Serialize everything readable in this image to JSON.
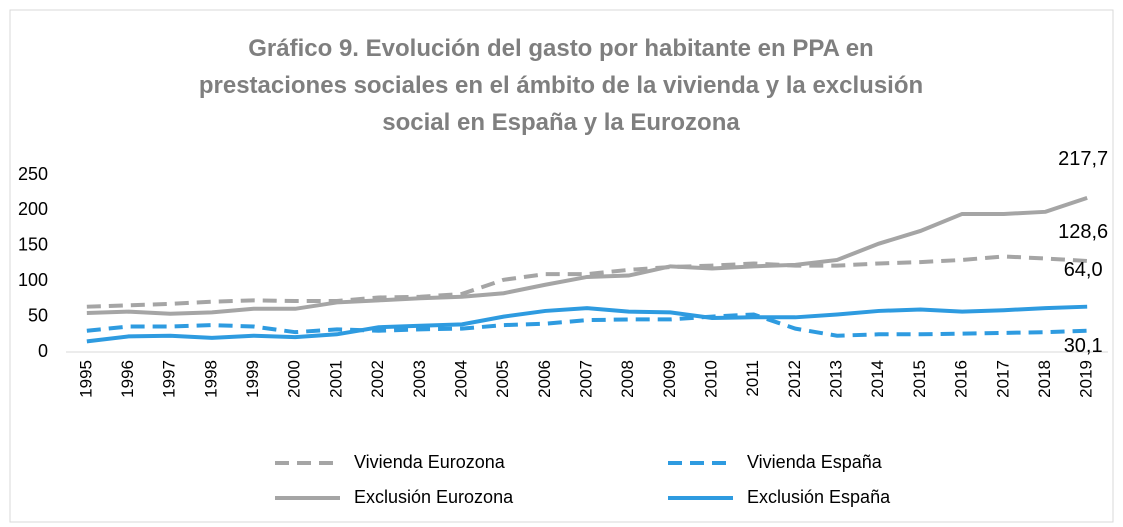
{
  "chart_data": {
    "type": "line",
    "title": "Gráfico 9. Evolución del gasto por habitante en PPA en prestaciones sociales en el ámbito de la vivienda y la exclusión social en España y la Eurozona",
    "categories": [
      "1995",
      "1996",
      "1997",
      "1998",
      "1999",
      "2000",
      "2001",
      "2002",
      "2003",
      "2004",
      "2005",
      "2006",
      "2007",
      "2008",
      "2009",
      "2010",
      "2011",
      "2012",
      "2013",
      "2014",
      "2015",
      "2016",
      "2017",
      "2018",
      "2019"
    ],
    "series": [
      {
        "name": "Vivienda Eurozona",
        "color": "#a5a5a5",
        "dash": true,
        "values": [
          64,
          66,
          68,
          71,
          73,
          72,
          72,
          77,
          78,
          82,
          102,
          110,
          110,
          116,
          120,
          122,
          125,
          122,
          122,
          125,
          127,
          130,
          135,
          132,
          128.6
        ],
        "value_labels": [
          null,
          null,
          null,
          null,
          null,
          null,
          null,
          null,
          null,
          null,
          null,
          null,
          null,
          null,
          null,
          null,
          null,
          null,
          null,
          null,
          null,
          null,
          null,
          null,
          "128,6"
        ]
      },
      {
        "name": "Vivienda España",
        "color": "#2e9be0",
        "dash": true,
        "values": [
          30,
          36,
          36,
          38,
          36,
          28,
          32,
          30,
          32,
          33,
          38,
          40,
          45,
          46,
          46,
          50,
          53,
          33,
          23,
          25,
          25,
          26,
          27,
          28,
          30.1
        ],
        "value_labels": [
          null,
          null,
          null,
          null,
          null,
          null,
          null,
          null,
          null,
          null,
          null,
          null,
          null,
          null,
          null,
          null,
          null,
          null,
          null,
          null,
          null,
          null,
          null,
          null,
          "30,1"
        ]
      },
      {
        "name": "Exclusión Eurozona",
        "color": "#a5a5a5",
        "dash": false,
        "values": [
          55,
          57,
          54,
          56,
          61,
          61,
          70,
          73,
          76,
          78,
          83,
          95,
          106,
          108,
          121,
          118,
          121,
          123,
          130,
          153,
          171,
          195,
          195,
          198,
          217.7
        ],
        "value_labels": [
          null,
          null,
          null,
          null,
          null,
          null,
          null,
          null,
          null,
          null,
          null,
          null,
          null,
          null,
          null,
          null,
          null,
          null,
          null,
          null,
          null,
          null,
          null,
          null,
          "217,7"
        ]
      },
      {
        "name": "Exclusión España",
        "color": "#2e9be0",
        "dash": false,
        "values": [
          15,
          22,
          23,
          20,
          23,
          21,
          25,
          35,
          37,
          39,
          50,
          58,
          62,
          57,
          56,
          48,
          49,
          49,
          53,
          58,
          60,
          57,
          59,
          62,
          64.0
        ],
        "value_labels": [
          null,
          null,
          null,
          null,
          null,
          null,
          null,
          null,
          null,
          null,
          null,
          null,
          null,
          null,
          null,
          null,
          null,
          null,
          null,
          null,
          null,
          null,
          null,
          null,
          "64,0"
        ]
      }
    ],
    "ylim": [
      0,
      250
    ],
    "yticks": [
      0,
      50,
      100,
      150,
      200,
      250
    ],
    "grid": false,
    "legend": "bottom"
  }
}
